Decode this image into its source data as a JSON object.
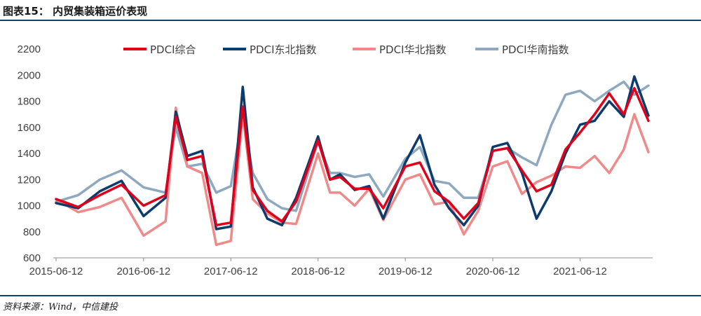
{
  "header": {
    "title": "图表15：    内贸集装箱运价表现"
  },
  "footer": {
    "source": "资料来源：Wind，中信建投"
  },
  "chart_data": {
    "type": "line",
    "title": "",
    "xlabel": "",
    "ylabel": "",
    "ylim": [
      600,
      2200
    ],
    "yticks": [
      600,
      800,
      1000,
      1200,
      1400,
      1600,
      1800,
      2000,
      2200
    ],
    "xlim": [
      "2015-06-12",
      "2022-03-25"
    ],
    "xticks": [
      "2015-06-12",
      "2016-06-12",
      "2017-06-12",
      "2018-06-12",
      "2019-06-12",
      "2020-06-12",
      "2021-06-12"
    ],
    "grid": false,
    "legend_position": "top",
    "x": [
      "2015-06-12",
      "2015-09-12",
      "2015-12-12",
      "2016-03-12",
      "2016-06-12",
      "2016-09-12",
      "2016-10-25",
      "2016-12-12",
      "2017-02-12",
      "2017-04-12",
      "2017-06-12",
      "2017-08-01",
      "2017-09-12",
      "2017-11-12",
      "2018-01-12",
      "2018-03-12",
      "2018-06-12",
      "2018-08-01",
      "2018-09-12",
      "2018-11-12",
      "2019-01-12",
      "2019-03-12",
      "2019-06-12",
      "2019-08-12",
      "2019-10-12",
      "2019-12-12",
      "2020-02-12",
      "2020-04-12",
      "2020-06-12",
      "2020-08-12",
      "2020-10-12",
      "2020-12-12",
      "2021-02-12",
      "2021-04-12",
      "2021-06-12",
      "2021-08-12",
      "2021-10-12",
      "2021-12-12",
      "2022-01-25",
      "2022-03-25"
    ],
    "series": [
      {
        "name": "PDCI综合",
        "color": "#e0001b",
        "width": 3.5,
        "values": [
          1050,
          990,
          1080,
          1160,
          1000,
          1080,
          1680,
          1350,
          1380,
          850,
          870,
          1760,
          1120,
          960,
          880,
          1030,
          1500,
          1200,
          1220,
          1130,
          1130,
          980,
          1300,
          1330,
          1110,
          1030,
          900,
          1020,
          1420,
          1440,
          1270,
          1110,
          1160,
          1430,
          1560,
          1700,
          1860,
          1700,
          1900,
          1650
        ]
      },
      {
        "name": "PDCI东北指数",
        "color": "#0d3b6b",
        "width": 3.5,
        "values": [
          1020,
          980,
          1110,
          1190,
          920,
          1060,
          1720,
          1380,
          1420,
          820,
          840,
          1910,
          1140,
          900,
          850,
          1060,
          1530,
          1200,
          1240,
          1120,
          1150,
          900,
          1330,
          1540,
          1160,
          980,
          850,
          1000,
          1450,
          1480,
          1250,
          900,
          1110,
          1400,
          1620,
          1650,
          1800,
          1680,
          1990,
          1690
        ]
      },
      {
        "name": "PDCI华北指数",
        "color": "#f08a8a",
        "width": 3.5,
        "values": [
          1050,
          950,
          990,
          1060,
          770,
          880,
          1750,
          1300,
          1250,
          700,
          730,
          1700,
          1050,
          940,
          870,
          860,
          1400,
          1100,
          1100,
          1000,
          1130,
          890,
          1200,
          1240,
          1010,
          1030,
          780,
          960,
          1300,
          1340,
          1090,
          1180,
          1230,
          1300,
          1290,
          1380,
          1250,
          1430,
          1700,
          1410
        ]
      },
      {
        "name": "PDCI华南指数",
        "color": "#8ea8c0",
        "width": 3.5,
        "values": [
          1030,
          1080,
          1200,
          1270,
          1140,
          1100,
          1600,
          1300,
          1320,
          1100,
          1150,
          1700,
          1250,
          1050,
          980,
          960,
          1490,
          1250,
          1250,
          1220,
          1240,
          1070,
          1360,
          1450,
          1190,
          1170,
          1060,
          1060,
          1420,
          1440,
          1370,
          1310,
          1620,
          1850,
          1880,
          1800,
          1880,
          1950,
          1850,
          1920
        ]
      }
    ]
  }
}
